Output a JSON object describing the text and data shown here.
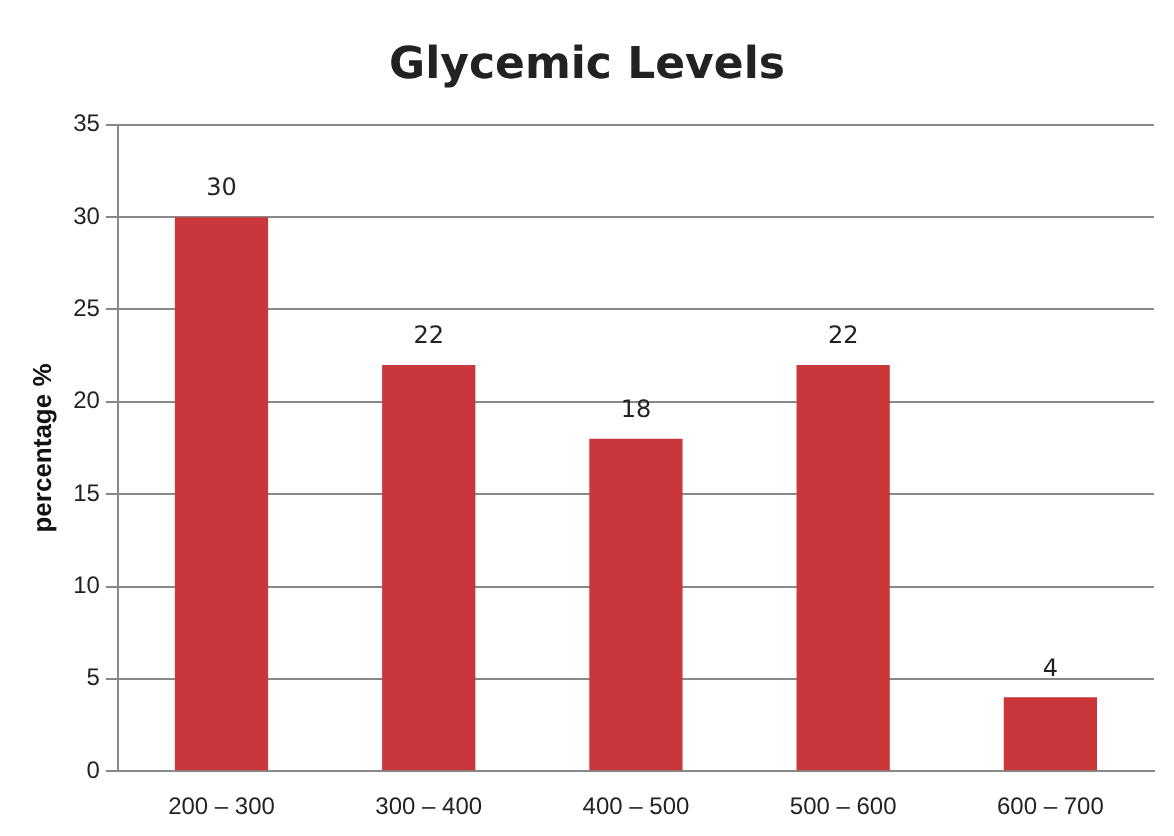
{
  "chart_data": {
    "type": "bar",
    "title": "Glycemic Levels",
    "ylabel": "percentage %",
    "categories": [
      "200 – 300",
      "300 – 400",
      "400 – 500",
      "500 – 600",
      "600 – 700"
    ],
    "values": [
      30,
      22,
      18,
      22,
      4
    ],
    "color": "#c9373a",
    "ylim": [
      0,
      35
    ],
    "yticks": [
      0,
      5,
      10,
      15,
      20,
      25,
      30,
      35
    ],
    "grid": "y",
    "data_labels": true
  }
}
